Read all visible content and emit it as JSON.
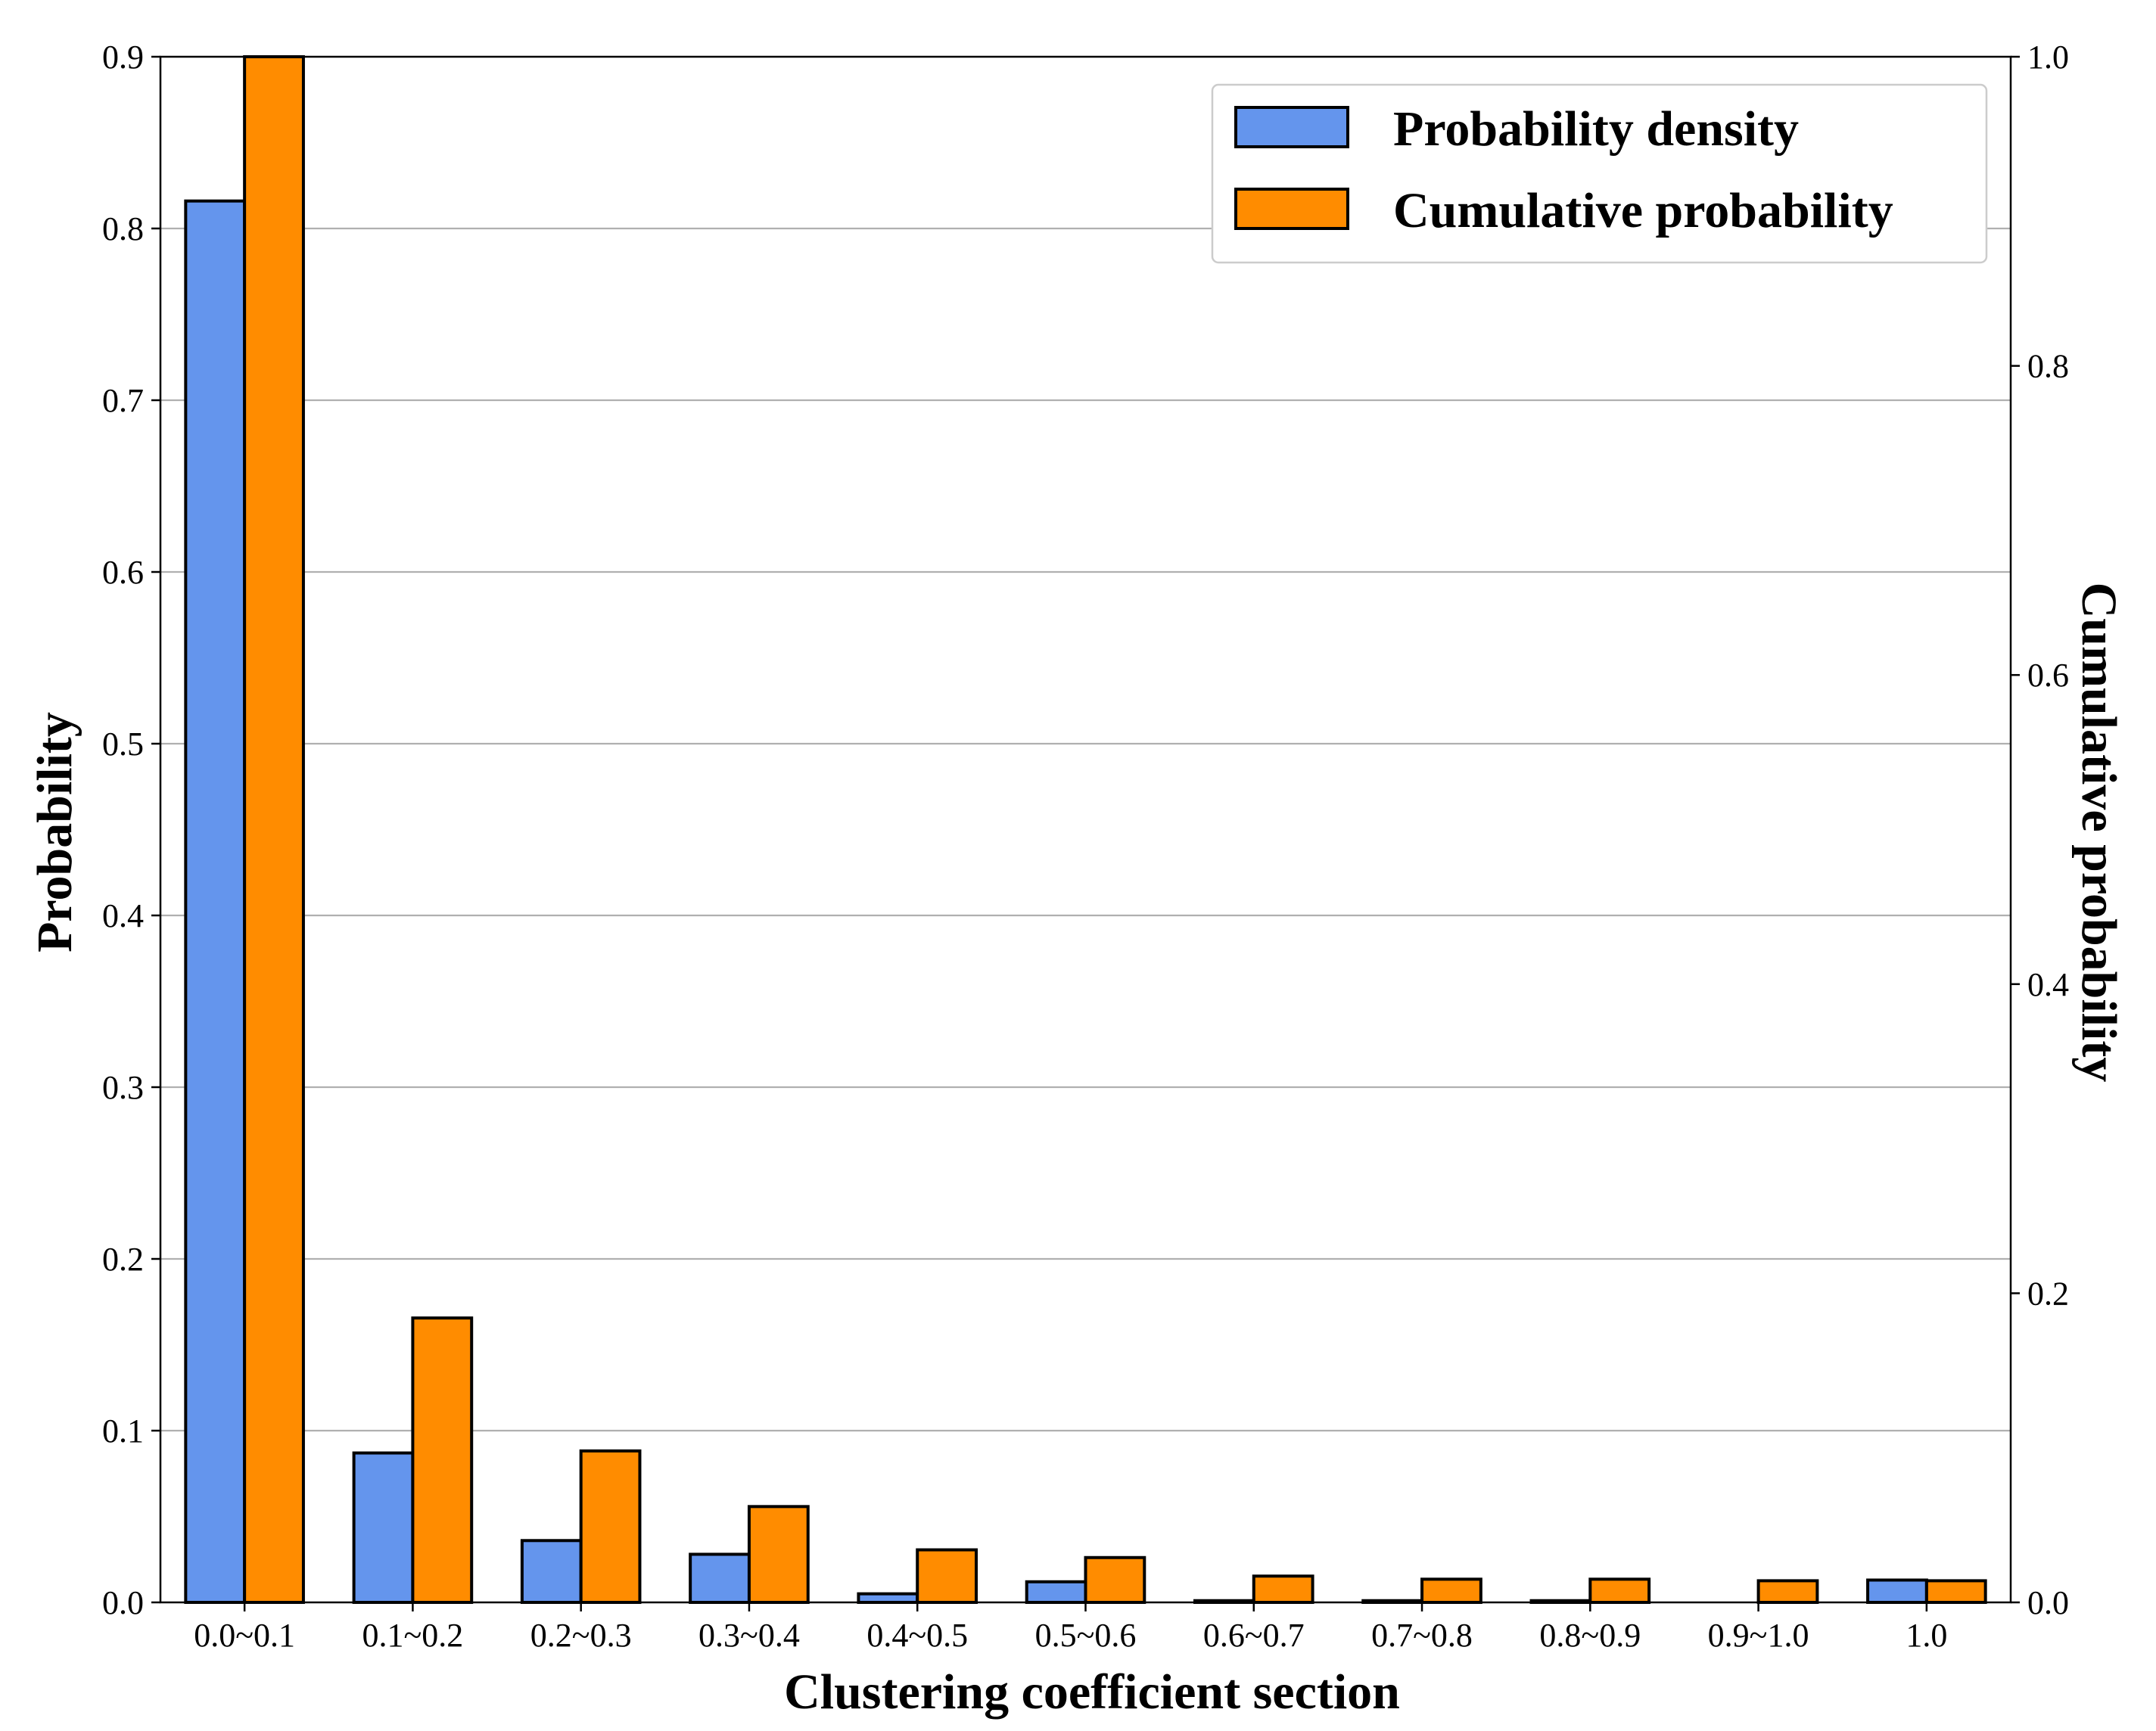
{
  "chart_data": {
    "type": "bar",
    "categories": [
      "0.0~0.1",
      "0.1~0.2",
      "0.2~0.3",
      "0.3~0.4",
      "0.4~0.5",
      "0.5~0.6",
      "0.6~0.7",
      "0.7~0.8",
      "0.8~0.9",
      "0.9~1.0",
      "1.0"
    ],
    "series": [
      {
        "name": "Probability density",
        "axis": "left",
        "color": "#6495ED",
        "values": [
          0.816,
          0.087,
          0.036,
          0.028,
          0.005,
          0.012,
          0.001,
          0.001,
          0.001,
          0.0,
          0.013
        ]
      },
      {
        "name": "Cumulative probability",
        "axis": "right",
        "color": "#FF8C00",
        "values": [
          1.0,
          0.184,
          0.098,
          0.062,
          0.034,
          0.029,
          0.017,
          0.015,
          0.015,
          0.014,
          0.014
        ]
      }
    ],
    "xlabel": "Clustering coefficient section",
    "ylabel": "Probability",
    "y2label": "Cumulative probability",
    "ylim": [
      0,
      0.9
    ],
    "y2lim": [
      0,
      1.0
    ],
    "yticks": [
      "0.0",
      "0.1",
      "0.2",
      "0.3",
      "0.4",
      "0.5",
      "0.6",
      "0.7",
      "0.8",
      "0.9"
    ],
    "y2ticks": [
      "0.0",
      "0.2",
      "0.4",
      "0.6",
      "0.8",
      "1.0"
    ],
    "grid": true,
    "legend_position": "top-right"
  }
}
